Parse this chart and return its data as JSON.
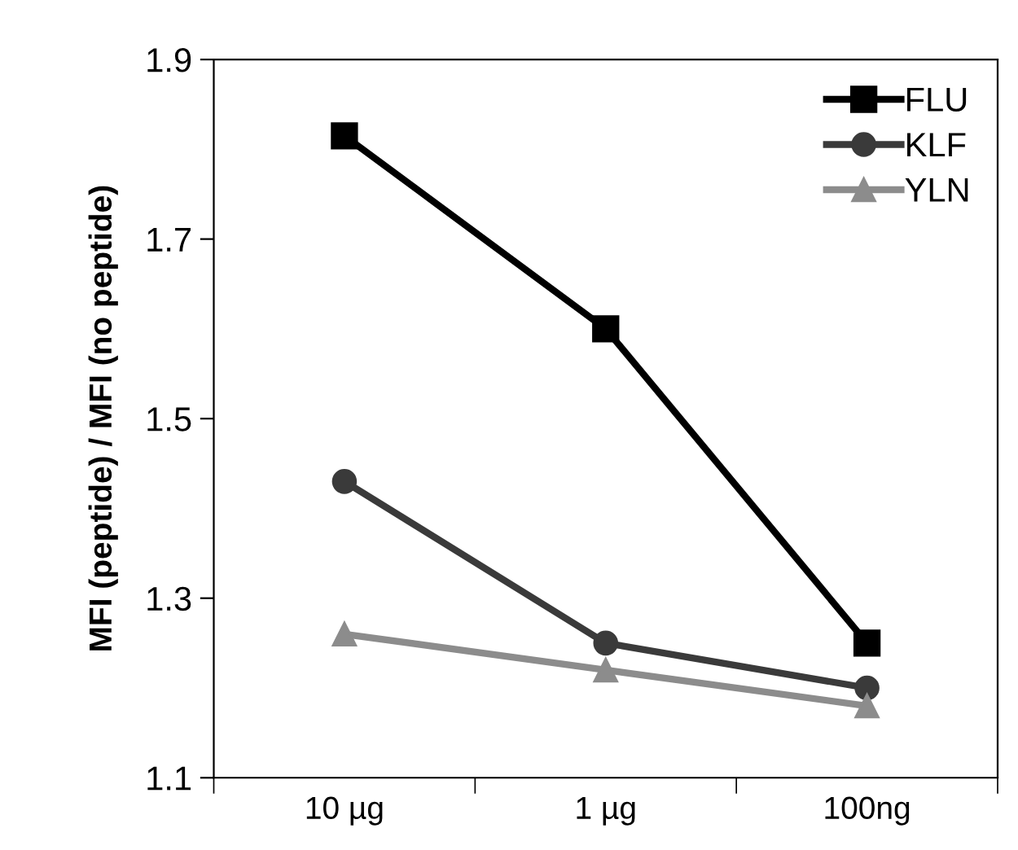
{
  "chart_data": {
    "type": "line",
    "ylabel": "MFI (peptide) / MFI (no peptide)",
    "categories": [
      "10 µg",
      "1 µg",
      "100ng"
    ],
    "series": [
      {
        "name": "FLU",
        "color": "#000000",
        "marker": "square",
        "values": [
          1.815,
          1.6,
          1.25
        ]
      },
      {
        "name": "KLF",
        "color": "#3a3a3a",
        "marker": "circle",
        "values": [
          1.43,
          1.25,
          1.2
        ]
      },
      {
        "name": "YLN",
        "color": "#8c8c8c",
        "marker": "triangle",
        "values": [
          1.26,
          1.22,
          1.18
        ]
      }
    ],
    "ylim": [
      1.1,
      1.9
    ],
    "yticks": [
      1.1,
      1.3,
      1.5,
      1.7,
      1.9
    ],
    "grid": false,
    "legend": "top right",
    "line_style": "solid"
  }
}
